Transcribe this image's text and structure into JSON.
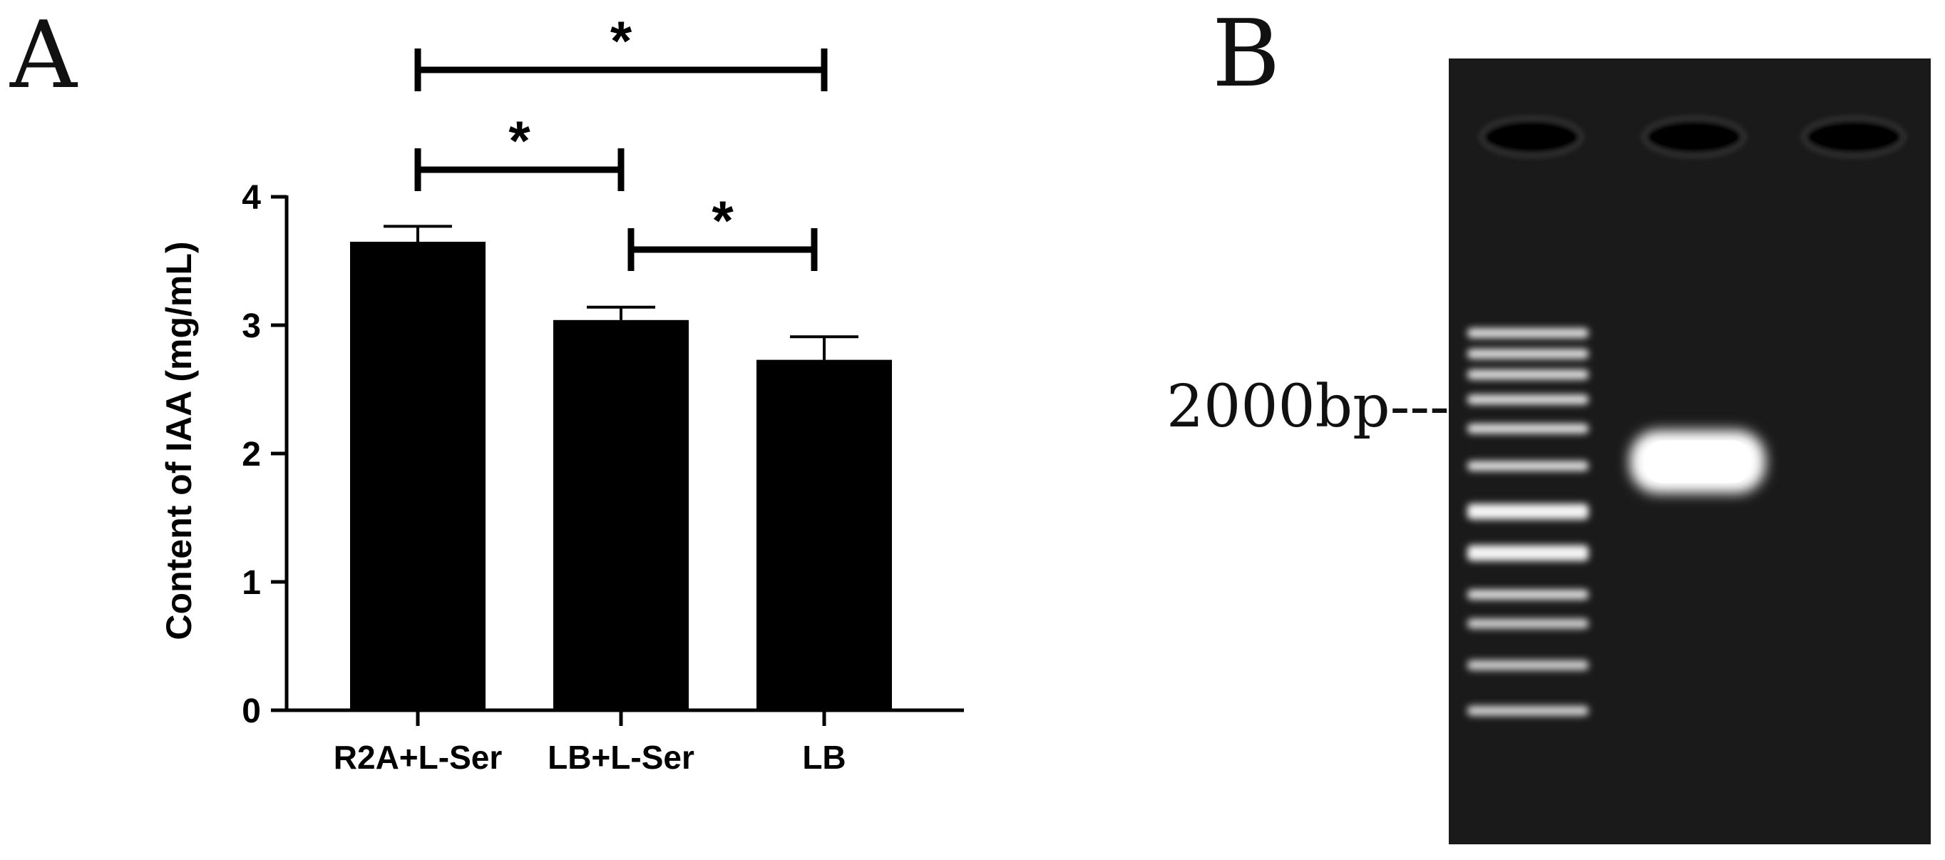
{
  "panels": {
    "a": {
      "letter": "A"
    },
    "b": {
      "letter": "B",
      "marker_label": "2000bp---"
    }
  },
  "chart_data": {
    "type": "bar",
    "title": "",
    "xlabel": "",
    "ylabel": "Content of IAA (mg/mL)",
    "categories": [
      "R2A+L-Ser",
      "LB+L-Ser",
      "LB"
    ],
    "values": [
      3.65,
      3.04,
      2.73
    ],
    "errors": [
      0.12,
      0.1,
      0.18
    ],
    "ylim": [
      0,
      4
    ],
    "yticks": [
      0,
      1,
      2,
      3,
      4
    ],
    "bar_color": "#000000",
    "significance": [
      {
        "from": 0,
        "to": 2,
        "label": "*"
      },
      {
        "from": 0,
        "to": 1,
        "label": "*"
      },
      {
        "from": 1,
        "to": 2,
        "label": "*"
      }
    ]
  },
  "gel": {
    "background": "#1a1a1a",
    "lanes": [
      "marker",
      "sample",
      "blank"
    ],
    "marker_bands": [
      0.05,
      0.1,
      0.15,
      0.21,
      0.28,
      0.37,
      0.48,
      0.58,
      0.68,
      0.75,
      0.85,
      0.96
    ],
    "sample_band_level": 0.36
  }
}
